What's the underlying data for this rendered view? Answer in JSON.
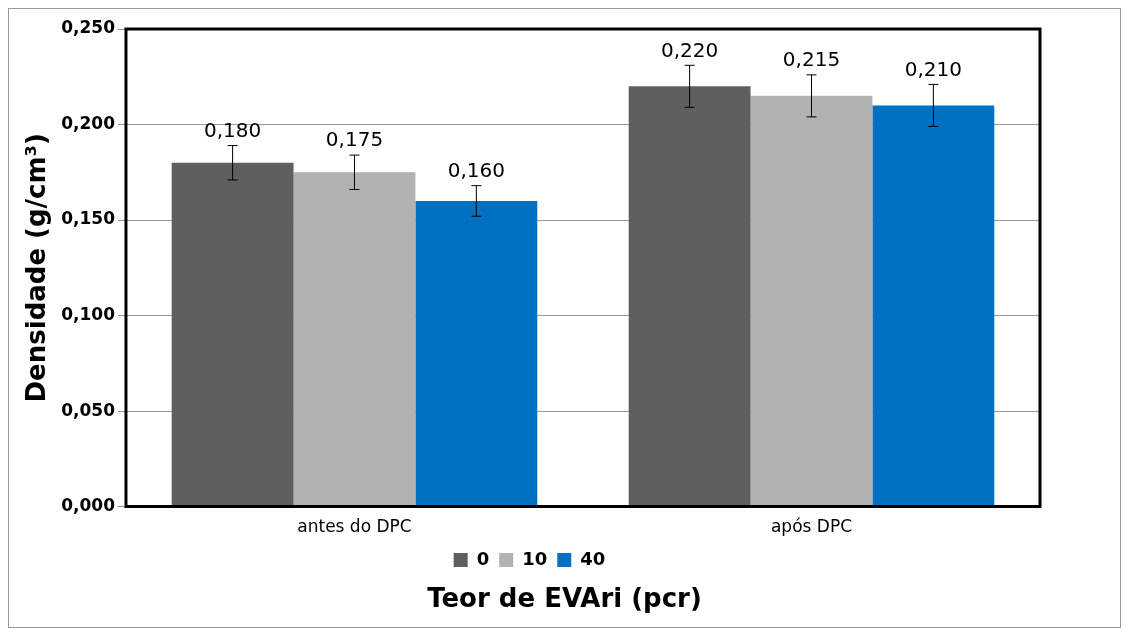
{
  "chart_data": {
    "type": "bar",
    "xlabel": "Teor de EVAri (pcr)",
    "ylabel": "Densidade (g/cm³)",
    "categories": [
      "antes do DPC",
      "após DPC"
    ],
    "series": [
      {
        "name": "0",
        "color": "#5f5f5f",
        "values": [
          0.18,
          0.22
        ],
        "errors": [
          0.009,
          0.011
        ],
        "value_labels": [
          "0,180",
          "0,220"
        ]
      },
      {
        "name": "10",
        "color": "#b2b2b2",
        "values": [
          0.175,
          0.215
        ],
        "errors": [
          0.009,
          0.011
        ],
        "value_labels": [
          "0,175",
          "0,215"
        ]
      },
      {
        "name": "40",
        "color": "#0070c0",
        "values": [
          0.16,
          0.21
        ],
        "errors": [
          0.008,
          0.011
        ],
        "value_labels": [
          "0,160",
          "0,210"
        ]
      }
    ],
    "ylim": [
      0,
      0.25
    ],
    "yticks": [
      {
        "value": 0,
        "label": "0,000"
      },
      {
        "value": 0.05,
        "label": "0,050"
      },
      {
        "value": 0.1,
        "label": "0,100"
      },
      {
        "value": 0.15,
        "label": "0,150"
      },
      {
        "value": 0.2,
        "label": "0,200"
      },
      {
        "value": 0.25,
        "label": "0,250"
      }
    ],
    "grid": "y",
    "legend": "bottom"
  }
}
